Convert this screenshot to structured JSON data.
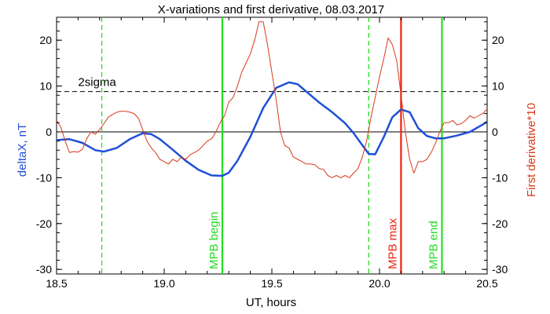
{
  "chart_data": {
    "type": "line",
    "title": "X-variations and first derivative, 08.03.2017",
    "xlabel": "UT, hours",
    "ylabel_left": "deltaX, nT",
    "ylabel_right": "First derivative*10",
    "xlim": [
      18.5,
      20.5
    ],
    "ylim": [
      -31,
      25
    ],
    "x_ticks": [
      18.5,
      19.0,
      19.5,
      20.0,
      20.5
    ],
    "x_tick_labels": [
      "18.5",
      "19.0",
      "19.5",
      "20.0",
      "20.5"
    ],
    "y_ticks": [
      20,
      10,
      0,
      -10,
      -20,
      -30
    ],
    "y_tick_labels": [
      "20",
      "10",
      "0",
      "-10",
      "-20",
      "-30"
    ],
    "colors": {
      "deltaX": "#1f4fd8",
      "derivative": "#d63a1a",
      "mpb": "#22dd22",
      "mpb_max": "#ee2211"
    },
    "sigma": {
      "value": 8.8,
      "label": "2sigma"
    },
    "zero_line": 0,
    "markers": [
      {
        "x": 18.71,
        "style": "dashed",
        "color": "#22dd22",
        "label": ""
      },
      {
        "x": 19.27,
        "style": "solid",
        "color": "#22dd22",
        "label": "MPB begin"
      },
      {
        "x": 19.95,
        "style": "dashed",
        "color": "#22dd22",
        "label": ""
      },
      {
        "x": 20.1,
        "style": "solid",
        "color": "#ee2211",
        "label": "MPB max"
      },
      {
        "x": 20.29,
        "style": "solid",
        "color": "#22dd22",
        "label": "MPB end"
      }
    ],
    "series": [
      {
        "name": "deltaX",
        "x": [
          18.5,
          18.56,
          18.62,
          18.68,
          18.72,
          18.78,
          18.84,
          18.9,
          18.94,
          18.98,
          19.04,
          19.1,
          19.16,
          19.22,
          19.27,
          19.3,
          19.34,
          19.4,
          19.46,
          19.52,
          19.58,
          19.62,
          19.66,
          19.72,
          19.78,
          19.84,
          19.88,
          19.92,
          19.95,
          19.98,
          20.02,
          20.06,
          20.1,
          20.14,
          20.18,
          20.22,
          20.26,
          20.3,
          20.36,
          20.42,
          20.48,
          20.5
        ],
        "y": [
          -1.8,
          -1.6,
          -2.4,
          -4.0,
          -4.3,
          -3.5,
          -1.6,
          -0.3,
          -0.5,
          -1.6,
          -3.9,
          -6.3,
          -8.3,
          -9.5,
          -9.6,
          -8.9,
          -6.3,
          -1.1,
          5.2,
          9.6,
          10.8,
          10.4,
          8.8,
          6.4,
          4.3,
          1.9,
          -0.3,
          -2.9,
          -4.8,
          -4.9,
          -1.1,
          3.2,
          4.9,
          4.3,
          0.8,
          -0.9,
          -1.4,
          -1.4,
          -0.8,
          0.0,
          1.6,
          2.2
        ]
      },
      {
        "name": "derivative",
        "x": [
          18.5,
          18.52,
          18.54,
          18.56,
          18.58,
          18.6,
          18.62,
          18.64,
          18.66,
          18.68,
          18.7,
          18.72,
          18.74,
          18.76,
          18.78,
          18.8,
          18.82,
          18.84,
          18.86,
          18.88,
          18.9,
          18.92,
          18.94,
          18.96,
          18.98,
          19.0,
          19.02,
          19.04,
          19.06,
          19.08,
          19.1,
          19.12,
          19.14,
          19.16,
          19.18,
          19.2,
          19.22,
          19.24,
          19.26,
          19.28,
          19.3,
          19.32,
          19.34,
          19.36,
          19.38,
          19.4,
          19.42,
          19.44,
          19.46,
          19.48,
          19.5,
          19.52,
          19.54,
          19.56,
          19.58,
          19.6,
          19.62,
          19.64,
          19.66,
          19.68,
          19.7,
          19.72,
          19.74,
          19.76,
          19.78,
          19.8,
          19.82,
          19.84,
          19.86,
          19.88,
          19.9,
          19.92,
          19.94,
          19.96,
          19.98,
          20.0,
          20.02,
          20.04,
          20.06,
          20.08,
          20.1,
          20.12,
          20.14,
          20.16,
          20.18,
          20.2,
          20.22,
          20.24,
          20.26,
          20.28,
          20.3,
          20.32,
          20.34,
          20.36,
          20.38,
          20.4,
          20.42,
          20.44,
          20.46,
          20.48,
          20.5
        ],
        "y": [
          2.5,
          1.0,
          -2.0,
          -4.5,
          -4.3,
          -4.4,
          -3.8,
          -1.5,
          0.0,
          -0.5,
          0.5,
          1.8,
          3.2,
          3.8,
          4.3,
          4.5,
          4.5,
          4.3,
          4.0,
          3.0,
          0.5,
          -2.0,
          -3.5,
          -4.5,
          -6.0,
          -6.5,
          -7.0,
          -6.0,
          -6.5,
          -5.5,
          -6.0,
          -5.0,
          -4.5,
          -4.0,
          -3.0,
          -2.0,
          -1.5,
          0.0,
          2.0,
          3.5,
          6.5,
          7.5,
          10.0,
          13.0,
          15.0,
          17.0,
          20.0,
          24.0,
          24.0,
          19.0,
          13.0,
          7.0,
          0.0,
          -3.0,
          -3.5,
          -5.5,
          -6.0,
          -6.5,
          -7.0,
          -7.0,
          -7.2,
          -8.0,
          -8.2,
          -9.5,
          -10.0,
          -9.5,
          -10.0,
          -9.5,
          -10.0,
          -9.0,
          -8.0,
          -5.5,
          -2.0,
          3.0,
          7.5,
          12.0,
          16.0,
          20.5,
          19.0,
          15.5,
          8.0,
          0.0,
          -6.0,
          -9.0,
          -6.5,
          -6.5,
          -6.0,
          -4.5,
          -2.5,
          0.0,
          2.0,
          2.0,
          2.5,
          1.5,
          1.8,
          2.5,
          3.5,
          3.0,
          3.5,
          4.0,
          5.0
        ]
      }
    ]
  }
}
